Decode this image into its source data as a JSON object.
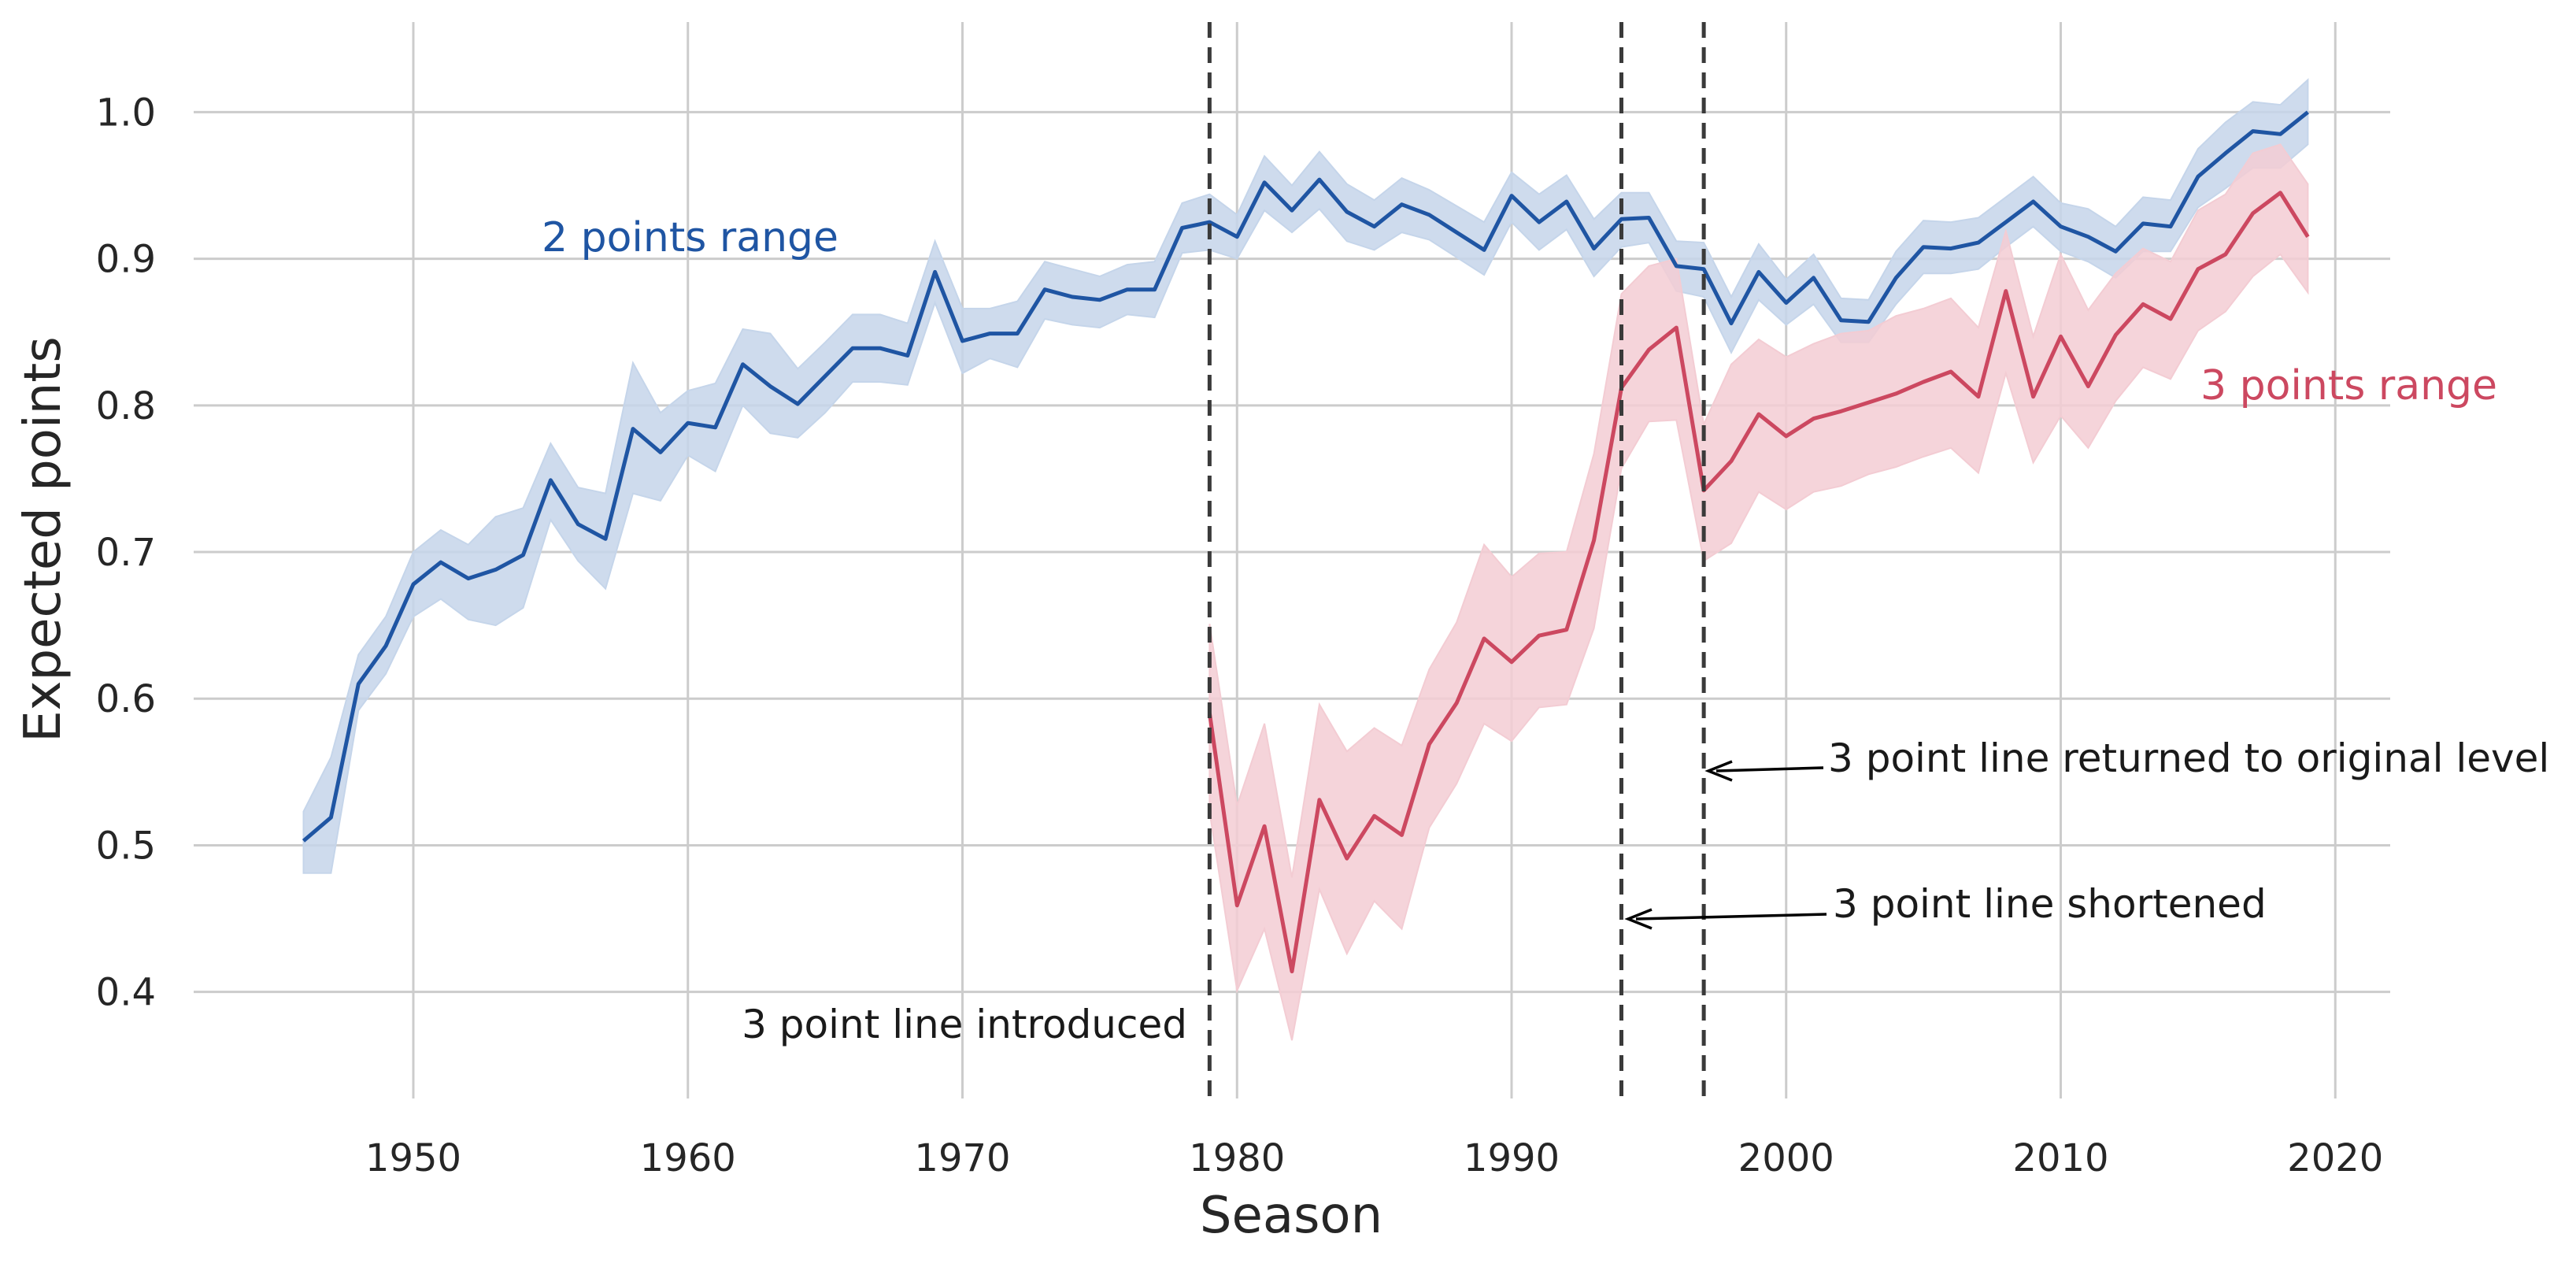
{
  "chart_data": {
    "type": "line",
    "xlabel": "Season",
    "ylabel": "Expected points",
    "xlim": [
      1942,
      2022
    ],
    "ylim": [
      0.33,
      1.055
    ],
    "xticks": [
      1950,
      1960,
      1970,
      1980,
      1990,
      2000,
      2010,
      2020
    ],
    "yticks": [
      0.4,
      0.5,
      0.6,
      0.7,
      0.8,
      0.9,
      1.0
    ],
    "ytick_labels": [
      "0.4",
      "0.5",
      "0.6",
      "0.7",
      "0.8",
      "0.9",
      "1.0"
    ],
    "grid": true,
    "series": [
      {
        "name": "2 points range",
        "color": "#1f55a3",
        "band_color": "#c5d5ea",
        "x": [
          1946,
          1947,
          1948,
          1949,
          1950,
          1951,
          1952,
          1953,
          1954,
          1955,
          1956,
          1957,
          1958,
          1959,
          1960,
          1961,
          1962,
          1963,
          1964,
          1965,
          1966,
          1967,
          1968,
          1969,
          1970,
          1971,
          1972,
          1973,
          1974,
          1975,
          1976,
          1977,
          1978,
          1979,
          1980,
          1981,
          1982,
          1983,
          1984,
          1985,
          1986,
          1987,
          1988,
          1989,
          1990,
          1991,
          1992,
          1993,
          1994,
          1995,
          1996,
          1997,
          1998,
          1999,
          2000,
          2001,
          2002,
          2003,
          2004,
          2005,
          2006,
          2007,
          2008,
          2009,
          2010,
          2011,
          2012,
          2013,
          2014,
          2015,
          2016,
          2017,
          2018,
          2019
        ],
        "values": [
          0.503,
          0.519,
          0.61,
          0.636,
          0.678,
          0.693,
          0.682,
          0.688,
          0.698,
          0.749,
          0.719,
          0.709,
          0.784,
          0.768,
          0.788,
          0.785,
          0.828,
          0.813,
          0.801,
          0.82,
          0.839,
          0.839,
          0.834,
          0.891,
          0.844,
          0.849,
          0.849,
          0.879,
          0.874,
          0.872,
          0.879,
          0.879,
          0.921,
          0.925,
          0.915,
          0.952,
          0.933,
          0.954,
          0.932,
          0.922,
          0.937,
          0.93,
          0.918,
          0.906,
          0.943,
          0.925,
          0.939,
          0.907,
          0.927,
          0.928,
          0.895,
          0.893,
          0.856,
          0.891,
          0.87,
          0.887,
          0.858,
          0.857,
          0.887,
          0.908,
          0.907,
          0.911,
          0.925,
          0.939,
          0.922,
          0.915,
          0.905,
          0.924,
          0.922,
          0.956,
          0.972,
          0.987,
          0.985,
          1.0
        ],
        "lower": [
          0.481,
          0.481,
          0.592,
          0.617,
          0.656,
          0.668,
          0.654,
          0.65,
          0.662,
          0.722,
          0.694,
          0.675,
          0.74,
          0.735,
          0.766,
          0.755,
          0.8,
          0.781,
          0.778,
          0.795,
          0.816,
          0.816,
          0.814,
          0.87,
          0.822,
          0.832,
          0.826,
          0.859,
          0.855,
          0.853,
          0.862,
          0.86,
          0.904,
          0.906,
          0.9,
          0.933,
          0.918,
          0.934,
          0.912,
          0.906,
          0.918,
          0.913,
          0.901,
          0.889,
          0.925,
          0.906,
          0.92,
          0.888,
          0.908,
          0.911,
          0.878,
          0.874,
          0.836,
          0.872,
          0.855,
          0.869,
          0.843,
          0.843,
          0.869,
          0.89,
          0.89,
          0.893,
          0.908,
          0.922,
          0.905,
          0.898,
          0.887,
          0.905,
          0.905,
          0.935,
          0.948,
          0.962,
          0.962,
          0.978
        ],
        "upper": [
          0.523,
          0.56,
          0.63,
          0.656,
          0.7,
          0.715,
          0.705,
          0.724,
          0.73,
          0.774,
          0.744,
          0.74,
          0.829,
          0.795,
          0.81,
          0.815,
          0.852,
          0.849,
          0.825,
          0.843,
          0.862,
          0.862,
          0.856,
          0.912,
          0.866,
          0.866,
          0.871,
          0.898,
          0.893,
          0.888,
          0.896,
          0.898,
          0.938,
          0.944,
          0.93,
          0.97,
          0.95,
          0.973,
          0.951,
          0.94,
          0.955,
          0.947,
          0.936,
          0.925,
          0.959,
          0.944,
          0.957,
          0.927,
          0.945,
          0.945,
          0.912,
          0.911,
          0.874,
          0.91,
          0.886,
          0.903,
          0.873,
          0.872,
          0.905,
          0.926,
          0.925,
          0.928,
          0.942,
          0.956,
          0.938,
          0.934,
          0.922,
          0.942,
          0.94,
          0.975,
          0.993,
          1.007,
          1.005,
          1.022
        ]
      },
      {
        "name": "3 points range",
        "color": "#cc4860",
        "band_color": "#f3ccd3",
        "x": [
          1979,
          1980,
          1981,
          1982,
          1983,
          1984,
          1985,
          1986,
          1987,
          1988,
          1989,
          1990,
          1991,
          1992,
          1993,
          1994,
          1995,
          1996,
          1997,
          1998,
          1999,
          2000,
          2001,
          2002,
          2003,
          2004,
          2005,
          2006,
          2007,
          2008,
          2009,
          2010,
          2011,
          2012,
          2013,
          2014,
          2015,
          2016,
          2017,
          2018,
          2019
        ],
        "values": [
          0.59,
          0.459,
          0.513,
          0.414,
          0.531,
          0.491,
          0.52,
          0.507,
          0.569,
          0.597,
          0.641,
          0.625,
          0.643,
          0.647,
          0.708,
          0.812,
          0.838,
          0.853,
          0.742,
          0.762,
          0.794,
          0.779,
          0.791,
          0.796,
          0.802,
          0.808,
          0.816,
          0.823,
          0.806,
          0.878,
          0.806,
          0.847,
          0.813,
          0.848,
          0.869,
          0.859,
          0.893,
          0.903,
          0.931,
          0.945,
          0.915
        ],
        "lower": [
          0.523,
          0.401,
          0.443,
          0.367,
          0.47,
          0.426,
          0.462,
          0.443,
          0.512,
          0.542,
          0.583,
          0.571,
          0.594,
          0.596,
          0.648,
          0.757,
          0.789,
          0.79,
          0.694,
          0.706,
          0.741,
          0.729,
          0.741,
          0.745,
          0.753,
          0.758,
          0.765,
          0.771,
          0.754,
          0.822,
          0.761,
          0.793,
          0.771,
          0.803,
          0.826,
          0.818,
          0.851,
          0.864,
          0.888,
          0.903,
          0.877
        ],
        "upper": [
          0.651,
          0.527,
          0.583,
          0.478,
          0.596,
          0.564,
          0.58,
          0.568,
          0.62,
          0.652,
          0.705,
          0.683,
          0.699,
          0.7,
          0.767,
          0.876,
          0.895,
          0.9,
          0.787,
          0.828,
          0.845,
          0.833,
          0.842,
          0.849,
          0.851,
          0.861,
          0.866,
          0.873,
          0.853,
          0.919,
          0.847,
          0.903,
          0.865,
          0.89,
          0.907,
          0.898,
          0.933,
          0.944,
          0.972,
          0.978,
          0.951
        ]
      }
    ],
    "vlines": [
      1979,
      1994,
      1997
    ],
    "annotations": [
      {
        "text": "3 point line introduced"
      },
      {
        "text": "3 point line shortened",
        "arrow_to": [
          1994,
          0.45
        ]
      },
      {
        "text": "3 point line returned to original level",
        "arrow_to": [
          1997,
          0.55
        ]
      }
    ]
  }
}
